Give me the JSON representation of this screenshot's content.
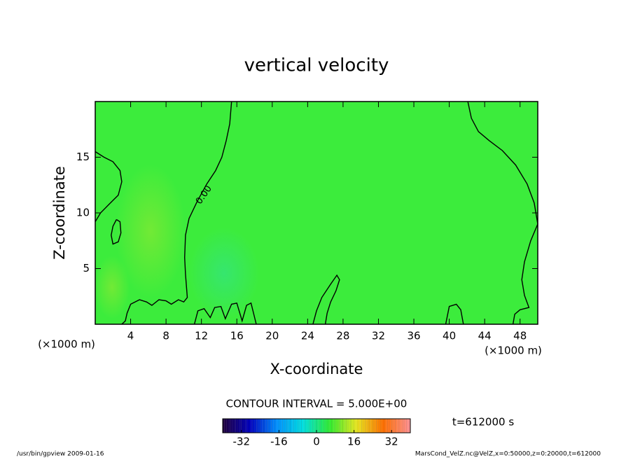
{
  "chart_data": {
    "type": "contour",
    "title": "vertical velocity",
    "xlabel": "X-coordinate",
    "ylabel": "Z-coordinate",
    "x_unit": "(×1000 m)",
    "xlim": [
      0,
      50
    ],
    "ylim": [
      0,
      20
    ],
    "xticks": [
      4,
      8,
      12,
      16,
      20,
      24,
      28,
      32,
      36,
      40,
      44,
      48
    ],
    "yticks": [
      5,
      10,
      15
    ],
    "fill_color": "#3cec3c",
    "contours": [
      {
        "level": 0,
        "label": "0.00",
        "color": "#000000",
        "lines": [
          {
            "x": [
              0,
              1,
              2,
              2.8,
              3,
              2.6,
              1.6,
              0.6,
              0
            ],
            "y": [
              15.5,
              15,
              14.6,
              13.8,
              12.8,
              11.6,
              10.8,
              10,
              9.2
            ]
          },
          {
            "x": [
              15.4,
              15.2,
              14.8,
              14.3,
              13.6,
              12.6,
              11.5,
              10.6,
              10.2,
              10.1,
              10.2,
              10.4,
              10.0,
              9.4,
              8.6,
              8.0,
              7.2,
              6.4,
              5.8,
              5.0,
              4.0,
              3.6,
              3.4,
              3.0
            ],
            "y": [
              20,
              18,
              16.5,
              15,
              13.8,
              12.6,
              11,
              9.5,
              8,
              6,
              4.5,
              2.4,
              2.0,
              2.2,
              1.8,
              2.1,
              2.2,
              1.7,
              2.0,
              2.2,
              1.8,
              1.0,
              0.3,
              0
            ]
          },
          {
            "x": [
              42.1,
              42.5,
              43.3,
              44.5,
              46,
              47.5,
              48.8,
              49.6,
              50
            ],
            "y": [
              20,
              18.5,
              17.3,
              16.5,
              15.6,
              14.3,
              12.6,
              10.9,
              9.0
            ]
          },
          {
            "x": [
              50,
              49.2,
              48.5,
              48.2,
              48.5,
              49,
              48,
              47.4,
              47.2
            ],
            "y": [
              9.0,
              7.5,
              5.6,
              4,
              2.6,
              1.5,
              1.3,
              0.9,
              0
            ]
          },
          {
            "x": [
              24.6,
              25,
              25.6,
              26.6,
              27.3,
              27.6,
              27.2,
              26.6,
              26.2,
              26
            ],
            "y": [
              0,
              1.2,
              2.4,
              3.6,
              4.4,
              4.0,
              3.0,
              2.0,
              1.0,
              0
            ]
          },
          {
            "x": [
              2.4,
              2.8,
              2.9,
              2.6,
              2.0,
              1.8,
              2.0,
              2.4
            ],
            "y": [
              9.4,
              9.2,
              8.2,
              7.4,
              7.2,
              8.0,
              8.8,
              9.4
            ]
          },
          {
            "x": [
              11.2,
              11.6,
              12.3,
              13,
              13.5,
              14.2,
              14.7,
              15.4,
              16,
              16.6,
              17.1,
              17.6,
              18.2
            ],
            "y": [
              0,
              1.2,
              1.4,
              0.6,
              1.5,
              1.6,
              0.5,
              1.8,
              1.9,
              0.3,
              1.7,
              1.9,
              0
            ]
          },
          {
            "x": [
              39.6,
              40,
              40.8,
              41.3,
              41.6
            ],
            "y": [
              0,
              1.6,
              1.8,
              1.3,
              0
            ]
          }
        ]
      }
    ],
    "contour_interval_text": "CONTOUR INTERVAL = 5.000E+00",
    "time_text": "t=612000 s",
    "colorbar": {
      "clim": [
        -40,
        40
      ],
      "ticks": [
        -32,
        -16,
        0,
        16,
        32
      ],
      "colors": [
        "#200040",
        "#0000c0",
        "#0090ff",
        "#00e0e0",
        "#30ee30",
        "#e8e820",
        "#ff7000",
        "#ff9090"
      ]
    },
    "footer_left": "/usr/bin/gpview   2009-01-16",
    "footer_right": "MarsCond_VelZ.nc@VelZ,x=0:50000,z=0:20000,t=612000"
  }
}
